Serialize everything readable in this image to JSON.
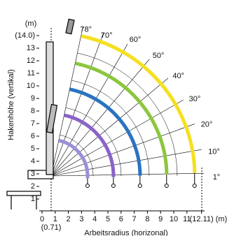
{
  "chart_data": {
    "type": "range-diagram",
    "y_label": "Hakenhöhe (vertikal)",
    "y_unit": "(m)",
    "x_label": "Arbeitsradius (horizonal)",
    "x_unit": "(m)",
    "x_sublabel": "(0.71)",
    "xlim": [
      0,
      12.11
    ],
    "ylim": [
      1,
      14
    ],
    "xticks": [
      0,
      1,
      2,
      3,
      4,
      5,
      6,
      7,
      8,
      9,
      10,
      11,
      {
        "value": 12.11,
        "label": "(12.11)"
      }
    ],
    "yticks": [
      1,
      2,
      3,
      4,
      5,
      6,
      7,
      8,
      9,
      10,
      11,
      12,
      13,
      {
        "value": 14,
        "label": "(14.0)"
      }
    ],
    "angles": [
      "78°",
      "70°",
      "60°",
      "50°",
      "40°",
      "30°",
      "20°",
      "10°",
      "1°"
    ]
  }
}
